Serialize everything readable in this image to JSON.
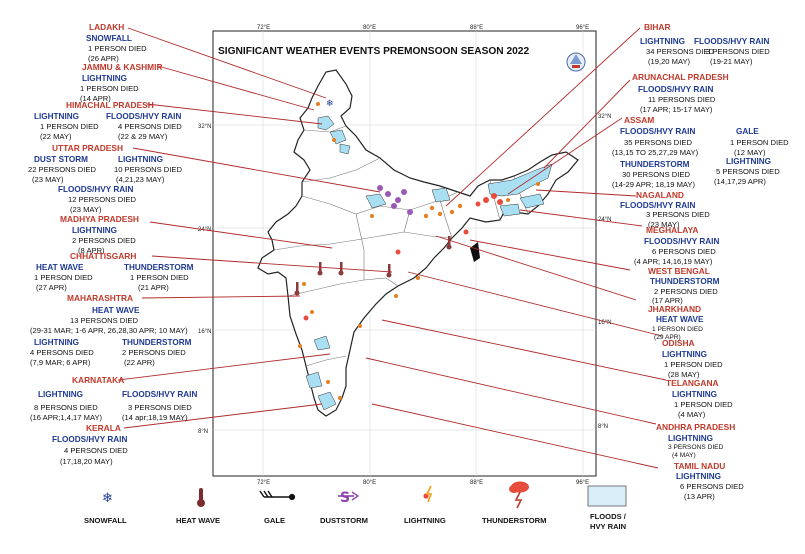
{
  "title": "SIGNIFICANT WEATHER EVENTS PREMONSOON SEASON  2022",
  "grid": {
    "lon": [
      "72°E",
      "80°E",
      "88°E",
      "96°E"
    ],
    "lat": [
      "32°N",
      "24°N",
      "16°N",
      "8°N"
    ]
  },
  "colors": {
    "state": "#c0392b",
    "event": "#1f3a93",
    "leader": "#b02a2a",
    "flood": "#a8dff2"
  },
  "states": [
    {
      "name": "LADAKH",
      "events": [
        {
          "type": "SNOWFALL",
          "deaths": "1 PERSON DIED",
          "dates": "(26 APR)"
        }
      ]
    },
    {
      "name": "JAMMU & KASHMIR",
      "events": [
        {
          "type": "LIGHTNING",
          "deaths": "1 PERSON DIED",
          "dates": "(14 APR)"
        }
      ]
    },
    {
      "name": "HIMACHAL PRADESH",
      "events": [
        {
          "type": "LIGHTNING",
          "deaths": "1 PERSON DIED",
          "dates": "(22 MAY)"
        },
        {
          "type": "FLOODS/HVY RAIN",
          "deaths": "4 PERSONS DIED",
          "dates": "(22 & 29 MAY)"
        }
      ]
    },
    {
      "name": "UTTAR PRADESH",
      "events": [
        {
          "type": "DUST STORM",
          "deaths": "22 PERSONS DIED",
          "dates": "(23 MAY)"
        },
        {
          "type": "LIGHTNING",
          "deaths": "10 PERSONS DIED",
          "dates": "(4,21,23 MAY)"
        },
        {
          "type": "FLOODS/HVY RAIN",
          "deaths": "12 PERSONS DIED",
          "dates": "(23 MAY)"
        }
      ]
    },
    {
      "name": "MADHYA PRADESH",
      "events": [
        {
          "type": "LIGHTNING",
          "deaths": "2 PERSONS DIED",
          "dates": "(8 APR)"
        }
      ]
    },
    {
      "name": "CHHATTISGARH",
      "events": [
        {
          "type": "HEAT WAVE",
          "deaths": "1 PERSON DIED",
          "dates": "(27 APR)"
        },
        {
          "type": "THUNDERSTORM",
          "deaths": "1 PERSON DIED",
          "dates": "(21 APR)"
        }
      ]
    },
    {
      "name": "MAHARASHTRA",
      "events": [
        {
          "type": "HEAT WAVE",
          "deaths": "13 PERSONS DIED",
          "dates": "(29-31 MAR; 1-6 APR, 26,28,30 APR; 10 MAY)"
        },
        {
          "type": "LIGHTNING",
          "deaths": "4 PERSONS DIED",
          "dates": "(7,9 MAR; 6 APR)"
        },
        {
          "type": "THUNDERSTORM",
          "deaths": "2 PERSONS DIED",
          "dates": "(22 APR)"
        }
      ]
    },
    {
      "name": "KARNATAKA",
      "events": [
        {
          "type": "LIGHTNING",
          "deaths": "8 PERSONS DIED",
          "dates": "(16 APR;1,4,17 MAY)"
        },
        {
          "type": "FLOODS/HVY RAIN",
          "deaths": "3 PERSONS DIED",
          "dates": "(14 apr;18,19 MAY)"
        }
      ]
    },
    {
      "name": "KERALA",
      "events": [
        {
          "type": "FLOODS/HVY RAIN",
          "deaths": "4 PERSONS DIED",
          "dates": "(17,18,20  MAY)"
        }
      ]
    },
    {
      "name": "BIHAR",
      "events": [
        {
          "type": "LIGHTNING",
          "deaths": "34 PERSONS DIED",
          "dates": "(19,20 MAY)"
        },
        {
          "type": "FLOODS/HVY RAIN",
          "deaths": "3 PERSONS DIED",
          "dates": "(19-21 MAY)"
        }
      ]
    },
    {
      "name": "ARUNACHAL PRADESH",
      "events": [
        {
          "type": "FLOODS/HVY RAIN",
          "deaths": "11 PERSONS DIED",
          "dates": "(17 APR; 15-17 MAY)"
        }
      ]
    },
    {
      "name": "ASSAM",
      "events": [
        {
          "type": "FLOODS/HVY RAIN",
          "deaths": "35 PERSONS DIED",
          "dates": "(13,15 TO 25,27,29 MAY)"
        },
        {
          "type": "GALE",
          "deaths": "1 PERSON DIED",
          "dates": "(12 MAY)"
        },
        {
          "type": "THUNDERSTORM",
          "deaths": "30 PERSONS DIED",
          "dates": "(14-29 APR; 18,19 MAY)"
        },
        {
          "type": "LIGHTNING",
          "deaths": "5 PERSONS DIED",
          "dates": "(14,17,29 APR)"
        }
      ]
    },
    {
      "name": "NAGALAND",
      "events": [
        {
          "type": "FLOODS/HVY RAIN",
          "deaths": "3 PERSONS DIED",
          "dates": "(23 MAY)"
        }
      ]
    },
    {
      "name": "MEGHALAYA",
      "events": [
        {
          "type": "FLOODS/HVY RAIN",
          "deaths": "6 PERSONS DIED",
          "dates": "(4 APR; 14,16,19 MAY)"
        }
      ]
    },
    {
      "name": "WEST BENGAL",
      "events": [
        {
          "type": "THUNDERSTORM",
          "deaths": "2 PERSONS DIED",
          "dates": "(17 APR)"
        }
      ]
    },
    {
      "name": "JHARKHAND",
      "events": [
        {
          "type": "HEAT WAVE",
          "deaths": "1 PERSON DIED",
          "dates": "(29 APR)"
        }
      ]
    },
    {
      "name": "ODISHA",
      "events": [
        {
          "type": "LIGHTNING",
          "deaths": "1 PERSON DIED",
          "dates": "(28 MAY)"
        }
      ]
    },
    {
      "name": "TELANGANA",
      "events": [
        {
          "type": "LIGHTNING",
          "deaths": "1 PERSON DIED",
          "dates": "(4 MAY)"
        }
      ]
    },
    {
      "name": "ANDHRA PRADESH",
      "events": [
        {
          "type": "LIGHTNING",
          "deaths": "3 PERSONS DIED",
          "dates": "(4 MAY)"
        }
      ]
    },
    {
      "name": "TAMIL NADU",
      "events": [
        {
          "type": "LIGHTNING",
          "deaths": "6 PERSONS DIED",
          "dates": "(13 APR)"
        }
      ]
    }
  ],
  "legend": [
    {
      "label": "SNOWFALL",
      "icon": "snowflake-icon"
    },
    {
      "label": "HEAT WAVE",
      "icon": "thermometer-icon"
    },
    {
      "label": "GALE",
      "icon": "wind-icon"
    },
    {
      "label": "DUSTSTORM",
      "icon": "duststorm-icon"
    },
    {
      "label": "LIGHTNING",
      "icon": "lightning-icon"
    },
    {
      "label": "THUNDERSTORM",
      "icon": "thunderstorm-icon"
    },
    {
      "label": "FLOODS /",
      "label2": "HVY RAIN",
      "icon": "flood-icon"
    }
  ]
}
